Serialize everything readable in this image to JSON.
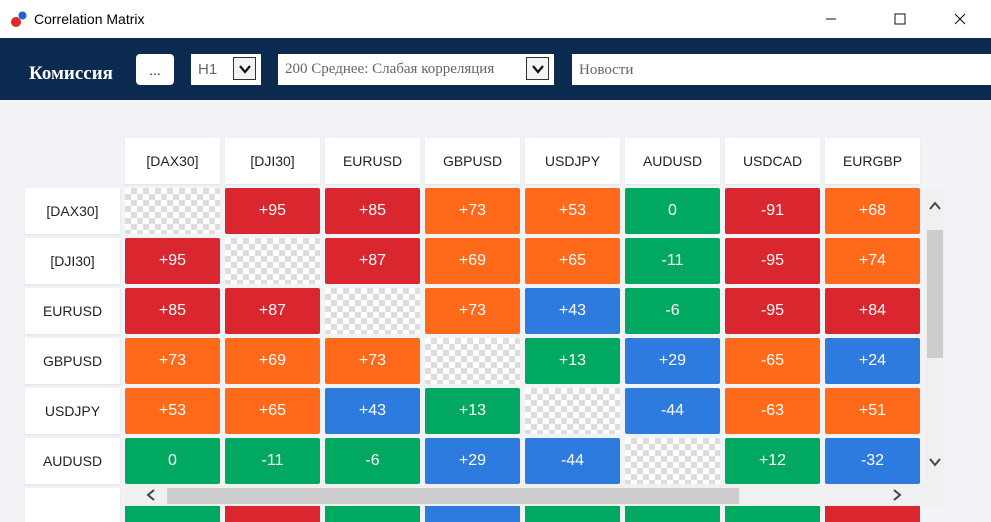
{
  "window": {
    "title": "Correlation Matrix"
  },
  "toolbar": {
    "commission_label": "Комиссия",
    "dots_label": "...",
    "timeframe": "H1",
    "period": "200 Среднее: Слабая корреляция",
    "news_placeholder": "Новости"
  },
  "matrix": {
    "columns": [
      "[DAX30]",
      "[DJI30]",
      "EURUSD",
      "GBPUSD",
      "USDJPY",
      "AUDUSD",
      "USDCAD",
      "EURGBP"
    ],
    "rows": [
      "[DAX30]",
      "[DJI30]",
      "EURUSD",
      "GBPUSD",
      "USDJPY",
      "AUDUSD"
    ],
    "values": [
      [
        "",
        "+95",
        "+85",
        "+73",
        "+53",
        "0",
        "-91",
        "+68"
      ],
      [
        "+95",
        "",
        "+87",
        "+69",
        "+65",
        "-11",
        "-95",
        "+74"
      ],
      [
        "+85",
        "+87",
        "",
        "+73",
        "+43",
        "-6",
        "-95",
        "+84"
      ],
      [
        "+73",
        "+69",
        "+73",
        "",
        "+13",
        "+29",
        "-65",
        "+24"
      ],
      [
        "+53",
        "+65",
        "+43",
        "+13",
        "",
        "-44",
        "-63",
        "+51"
      ],
      [
        "0",
        "-11",
        "-6",
        "+29",
        "-44",
        "",
        "+12",
        "-32"
      ]
    ],
    "colors": [
      [
        "",
        "red",
        "red",
        "orange",
        "orange",
        "green",
        "red",
        "orange"
      ],
      [
        "red",
        "",
        "red",
        "orange",
        "orange",
        "green",
        "red",
        "orange"
      ],
      [
        "red",
        "red",
        "",
        "orange",
        "blue",
        "green",
        "red",
        "red"
      ],
      [
        "orange",
        "orange",
        "orange",
        "",
        "green",
        "blue",
        "orange",
        "blue"
      ],
      [
        "orange",
        "orange",
        "blue",
        "green",
        "",
        "blue",
        "orange",
        "orange"
      ],
      [
        "green",
        "green",
        "green",
        "blue",
        "blue",
        "",
        "green",
        "blue"
      ]
    ],
    "next_row_colors": [
      "green",
      "red",
      "green",
      "blue",
      "green",
      "green",
      "green",
      "red"
    ]
  },
  "palette": {
    "red": "#d9262f",
    "orange": "#ff6a1a",
    "green": "#00a862",
    "blue": "#2e7be0"
  },
  "theme": {
    "toolbar_bg": "#0b2a4f"
  }
}
